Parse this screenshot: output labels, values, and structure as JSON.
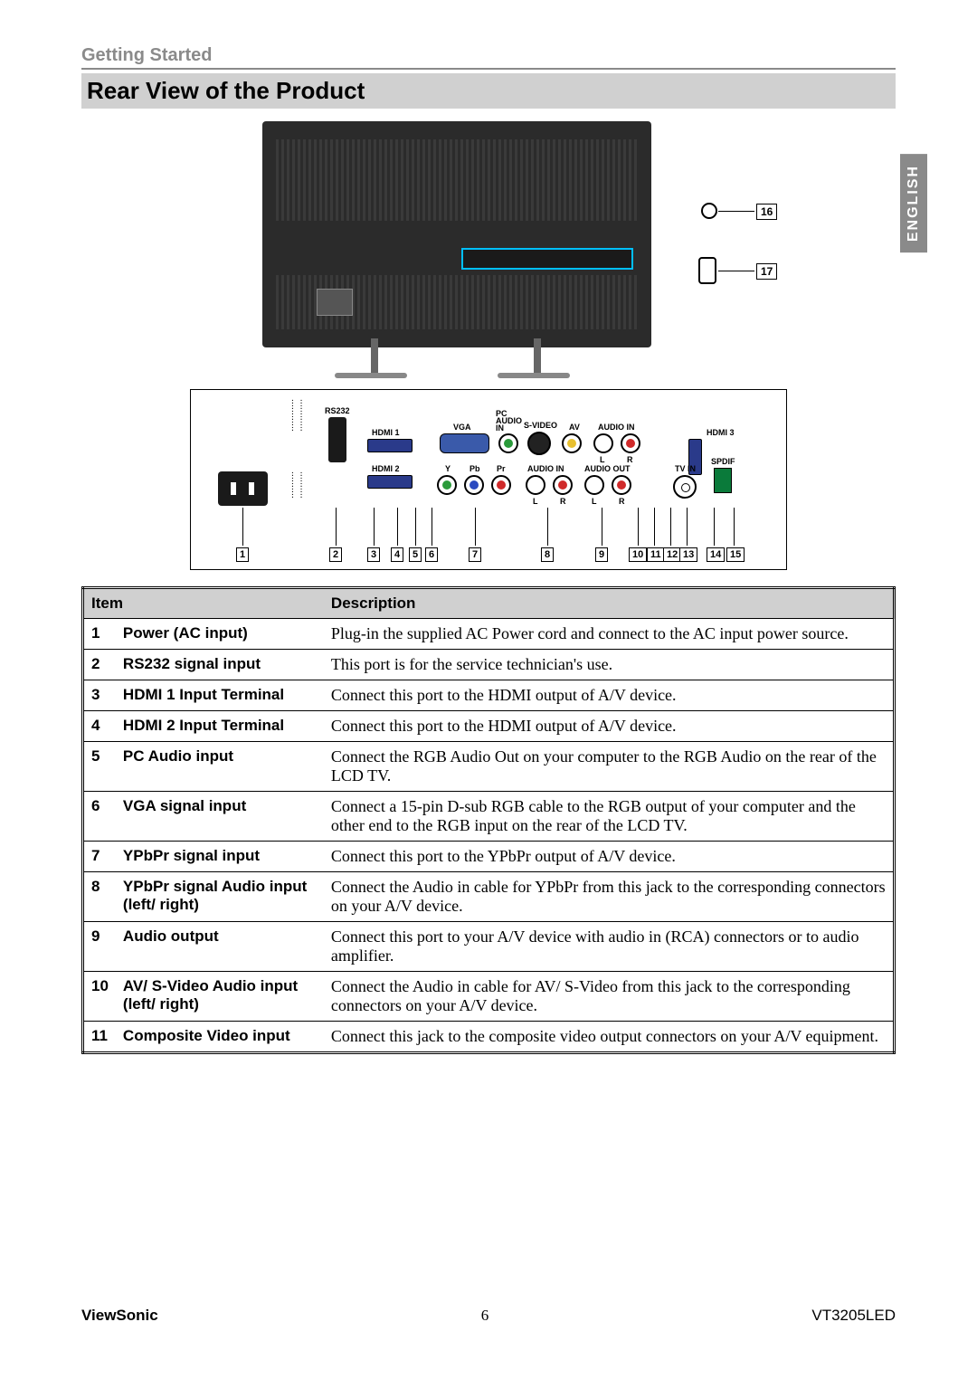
{
  "section": "Getting Started",
  "title": "Rear View of the Product",
  "language_tab": "ENGLISH",
  "callouts": {
    "c16": "16",
    "c17": "17"
  },
  "panel_labels": {
    "rs232": "RS232",
    "hdmi1": "HDMI 1",
    "hdmi2": "HDMI 2",
    "vga": "VGA",
    "pc_audio_in": "PC\nAUDIO\nIN",
    "svideo": "S-VIDEO",
    "av": "AV",
    "audio_in_top": "AUDIO IN",
    "y": "Y",
    "pb": "Pb",
    "pr": "Pr",
    "audio_in_bot": "AUDIO IN",
    "audio_out": "AUDIO OUT",
    "l": "L",
    "r": "R",
    "hdmi3": "HDMI 3",
    "tvin": "TV IN",
    "spdif": "SPDIF"
  },
  "panel_numbers": [
    "1",
    "2",
    "3",
    "4",
    "5",
    "6",
    "7",
    "8",
    "9",
    "10",
    "11",
    "12",
    "13",
    "14",
    "15"
  ],
  "colors": {
    "jack_green": "#2a9a3a",
    "jack_blue": "#2a4ac0",
    "jack_red": "#d02a2a",
    "jack_white": "#ffffff",
    "jack_yellow": "#e8c030",
    "jack_black": "#1a1a1a",
    "header_bg": "#d0d0d0",
    "section_gray": "#8a8a8a"
  },
  "table": {
    "headers": {
      "item": "Item",
      "desc": "Description"
    },
    "rows": [
      {
        "n": "1",
        "item": "Power (AC input)",
        "desc": "Plug-in the supplied AC Power cord and connect to the AC input power source."
      },
      {
        "n": "2",
        "item": "RS232 signal input",
        "desc": "This port is for the service technician's use."
      },
      {
        "n": "3",
        "item": "HDMI 1 Input Terminal",
        "desc": "Connect this port to the HDMI output of A/V device."
      },
      {
        "n": "4",
        "item": "HDMI 2 Input Terminal",
        "desc": "Connect this port to the HDMI output of A/V device."
      },
      {
        "n": "5",
        "item": "PC Audio input",
        "desc": "Connect the RGB Audio Out on your computer to the RGB Audio on the rear of the LCD TV."
      },
      {
        "n": "6",
        "item": "VGA signal input",
        "desc": "Connect a 15-pin D-sub RGB cable to the RGB output of your computer and the other end to the RGB input on the rear of the LCD TV."
      },
      {
        "n": "7",
        "item": "YPbPr signal input",
        "desc": "Connect this port to the YPbPr output of A/V device."
      },
      {
        "n": "8",
        "item": "YPbPr signal Audio input (left/ right)",
        "desc": "Connect the Audio in cable for YPbPr from this jack to the corresponding connectors on your A/V device."
      },
      {
        "n": "9",
        "item": "Audio output",
        "desc": "Connect this port to your A/V device with audio in (RCA) connectors or to audio amplifier."
      },
      {
        "n": "10",
        "item": "AV/ S-Video Audio input (left/ right)",
        "desc": "Connect the Audio in cable for AV/ S-Video from this jack to the corresponding connectors on your A/V device."
      },
      {
        "n": "11",
        "item": "Composite Video input",
        "desc": "Connect this jack to the composite video output connectors on your A/V equipment."
      }
    ]
  },
  "footer": {
    "brand": "ViewSonic",
    "page": "6",
    "model": "VT3205LED"
  }
}
